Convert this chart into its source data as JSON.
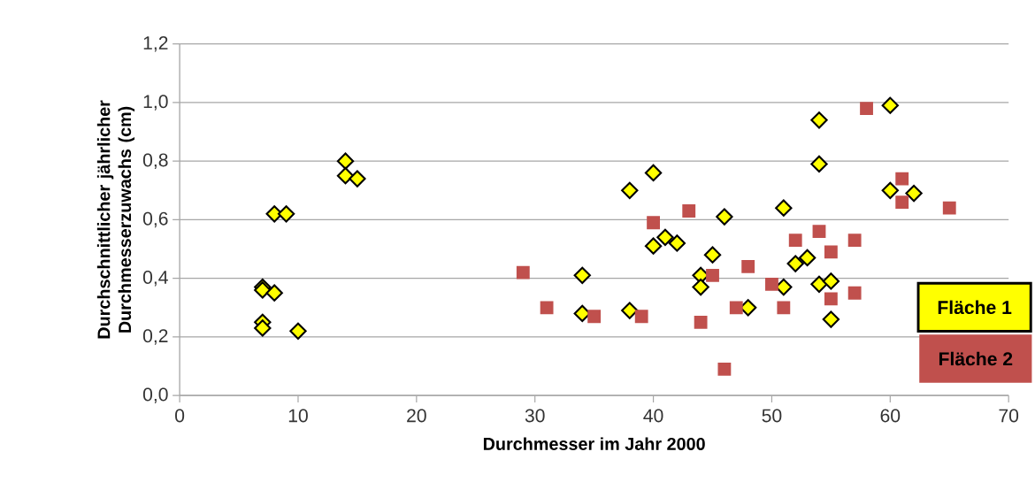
{
  "chart_data": {
    "type": "scatter",
    "xlabel": "Durchmesser im Jahr 2000",
    "ylabel": "Durchschnittlicher jährlicher Durchmesserzuwachs (cm)",
    "xlim": [
      0,
      70
    ],
    "xticks": [
      0,
      10,
      20,
      30,
      40,
      50,
      60,
      70
    ],
    "ylim": [
      0,
      1.2
    ],
    "yticks": [
      {
        "value": 0,
        "label": "0,0"
      },
      {
        "value": 0.2,
        "label": "0,2"
      },
      {
        "value": 0.4,
        "label": "0,4"
      },
      {
        "value": 0.6,
        "label": "0,6"
      },
      {
        "value": 0.8,
        "label": "0,8"
      },
      {
        "value": 1.0,
        "label": "1,0"
      },
      {
        "value": 1.2,
        "label": "1,2"
      }
    ],
    "grid": "y",
    "legend": "bottom right",
    "series": [
      {
        "name": "Fläche 1",
        "color": "#ffff00",
        "marker": "diamond",
        "x": [
          7,
          7,
          7,
          7,
          8,
          8,
          9,
          10,
          14,
          14,
          15,
          34,
          34,
          38,
          38,
          40,
          40,
          41,
          42,
          44,
          44,
          45,
          46,
          48,
          51,
          51,
          52,
          53,
          54,
          54,
          54,
          55,
          55,
          60,
          60,
          62
        ],
        "values": [
          0.37,
          0.36,
          0.25,
          0.23,
          0.62,
          0.35,
          0.62,
          0.22,
          0.8,
          0.75,
          0.74,
          0.41,
          0.28,
          0.7,
          0.29,
          0.76,
          0.51,
          0.54,
          0.52,
          0.41,
          0.37,
          0.48,
          0.61,
          0.3,
          0.64,
          0.37,
          0.45,
          0.47,
          0.94,
          0.79,
          0.38,
          0.39,
          0.26,
          0.99,
          0.7,
          0.69
        ]
      },
      {
        "name": "Fläche 2",
        "color": "#c0504d",
        "marker": "square",
        "x": [
          29,
          31,
          35,
          39,
          40,
          43,
          44,
          45,
          46,
          47,
          48,
          50,
          51,
          52,
          54,
          55,
          55,
          57,
          57,
          58,
          61,
          61,
          65
        ],
        "values": [
          0.42,
          0.3,
          0.27,
          0.27,
          0.59,
          0.63,
          0.25,
          0.41,
          0.09,
          0.3,
          0.44,
          0.38,
          0.3,
          0.53,
          0.56,
          0.49,
          0.33,
          0.53,
          0.35,
          0.98,
          0.74,
          0.66,
          0.64
        ]
      }
    ]
  }
}
